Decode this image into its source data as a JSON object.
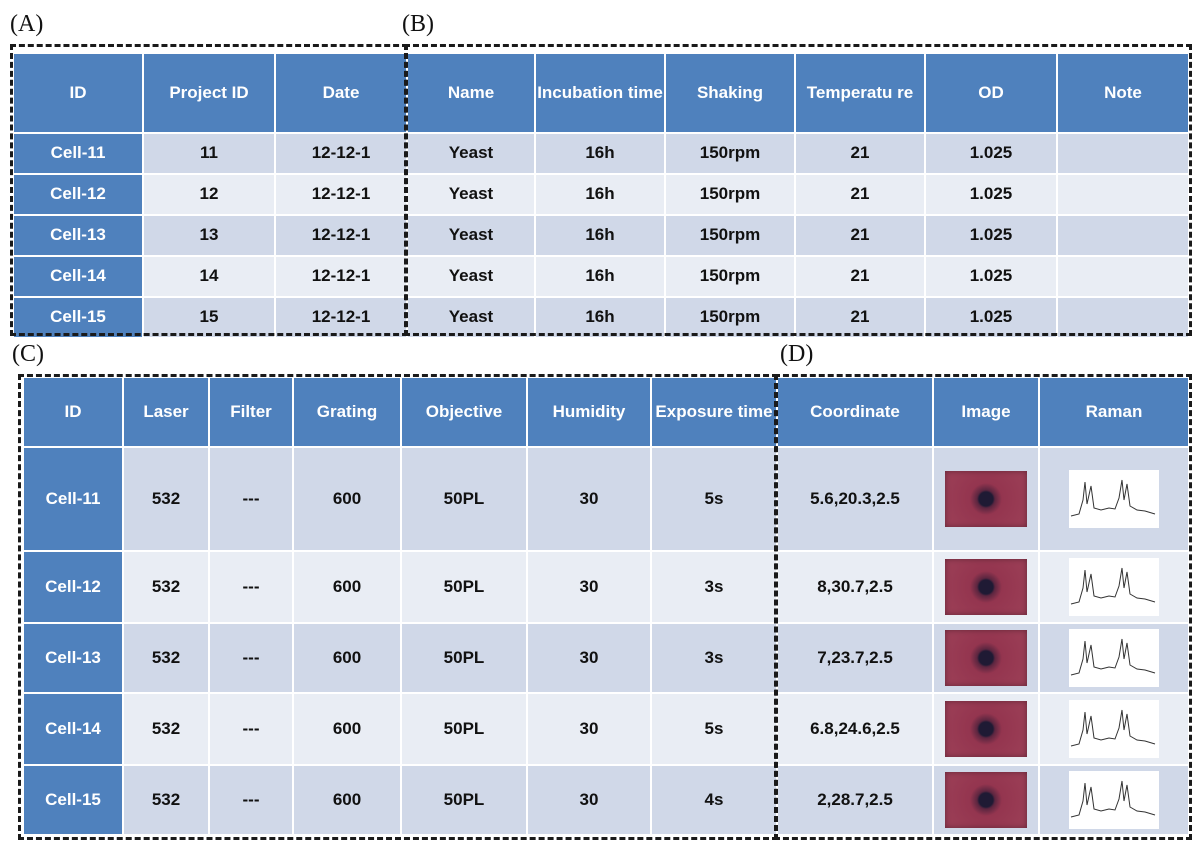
{
  "panels": {
    "a": "(A)",
    "b": "(B)",
    "c": "(C)",
    "d": "(D)"
  },
  "table_a": {
    "headers": [
      "ID",
      "Project ID",
      "Date"
    ],
    "rows": [
      [
        "Cell-11",
        "11",
        "12-12-1"
      ],
      [
        "Cell-12",
        "12",
        "12-12-1"
      ],
      [
        "Cell-13",
        "13",
        "12-12-1"
      ],
      [
        "Cell-14",
        "14",
        "12-12-1"
      ],
      [
        "Cell-15",
        "15",
        "12-12-1"
      ]
    ]
  },
  "table_b": {
    "headers": [
      "Name",
      "Incubation time",
      "Shaking",
      "Temperatu re",
      "OD",
      "Note"
    ],
    "rows": [
      [
        "Yeast",
        "16h",
        "150rpm",
        "21",
        "1.025",
        ""
      ],
      [
        "Yeast",
        "16h",
        "150rpm",
        "21",
        "1.025",
        ""
      ],
      [
        "Yeast",
        "16h",
        "150rpm",
        "21",
        "1.025",
        ""
      ],
      [
        "Yeast",
        "16h",
        "150rpm",
        "21",
        "1.025",
        ""
      ],
      [
        "Yeast",
        "16h",
        "150rpm",
        "21",
        "1.025",
        ""
      ]
    ]
  },
  "table_c": {
    "headers": [
      "ID",
      "Laser",
      "Filter",
      "Grating",
      "Objective",
      "Humidity",
      "Exposure time"
    ],
    "rows": [
      [
        "Cell-11",
        "532",
        "---",
        "600",
        "50PL",
        "30",
        "5s"
      ],
      [
        "Cell-12",
        "532",
        "---",
        "600",
        "50PL",
        "30",
        "3s"
      ],
      [
        "Cell-13",
        "532",
        "---",
        "600",
        "50PL",
        "30",
        "3s"
      ],
      [
        "Cell-14",
        "532",
        "---",
        "600",
        "50PL",
        "30",
        "5s"
      ],
      [
        "Cell-15",
        "532",
        "---",
        "600",
        "50PL",
        "30",
        "4s"
      ]
    ]
  },
  "table_d": {
    "headers": [
      "Coordinate",
      "Image",
      "Raman"
    ],
    "coordinates": [
      "5.6,20.3,2.5",
      "8,30.7,2.5",
      "7,23.7,2.5",
      "6.8,24.6,2.5",
      "2,28.7,2.5"
    ]
  },
  "colors": {
    "header_blue": "#4f81bd",
    "row_dark": "#d0d8e8",
    "row_light": "#e9edf4"
  },
  "icons": {
    "image": "cell-microscope-thumbnail",
    "raman": "raman-spectrum-thumbnail"
  }
}
